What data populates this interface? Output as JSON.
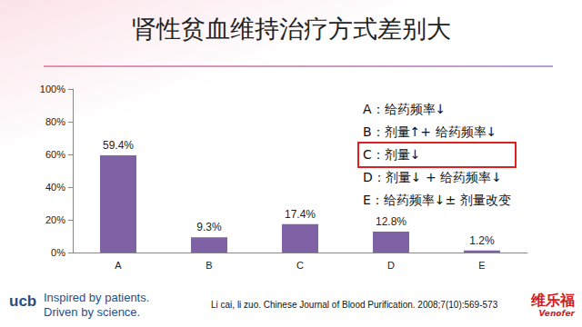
{
  "chart_data": {
    "type": "bar",
    "title": "肾性贫血维持治疗方式差别大",
    "categories": [
      "A",
      "B",
      "C",
      "D",
      "E"
    ],
    "values": [
      59.4,
      9.3,
      17.4,
      12.8,
      1.2
    ],
    "value_labels": [
      "59.4%",
      "9.3%",
      "17.4%",
      "12.8%",
      "1.2%"
    ],
    "data_labels": true,
    "color": "#7f62a6",
    "ylim": [
      0,
      100
    ],
    "yticks": [
      {
        "value": 0,
        "label": "0%"
      },
      {
        "value": 20,
        "label": "20%"
      },
      {
        "value": 40,
        "label": "40%"
      },
      {
        "value": 60,
        "label": "60%"
      },
      {
        "value": 80,
        "label": "80%"
      },
      {
        "value": 100,
        "label": "100%"
      }
    ],
    "grid": false,
    "annotations": [
      "A：给药频率↓",
      "B：剂量↑+ 给药频率↓",
      "C：剂量↓",
      "D：剂量↓ + 给药频率↓",
      "E：给药频率↓± 剂量改变"
    ]
  },
  "footer": {
    "logo": "ucb",
    "tagline": [
      "Inspired by patients.",
      "Driven by science."
    ],
    "citation": "Li cai, li zuo. Chinese Journal of Blood Purification. 2008;7(10):569-573",
    "brand": "维乐福",
    "brand_en": "Venofer"
  }
}
